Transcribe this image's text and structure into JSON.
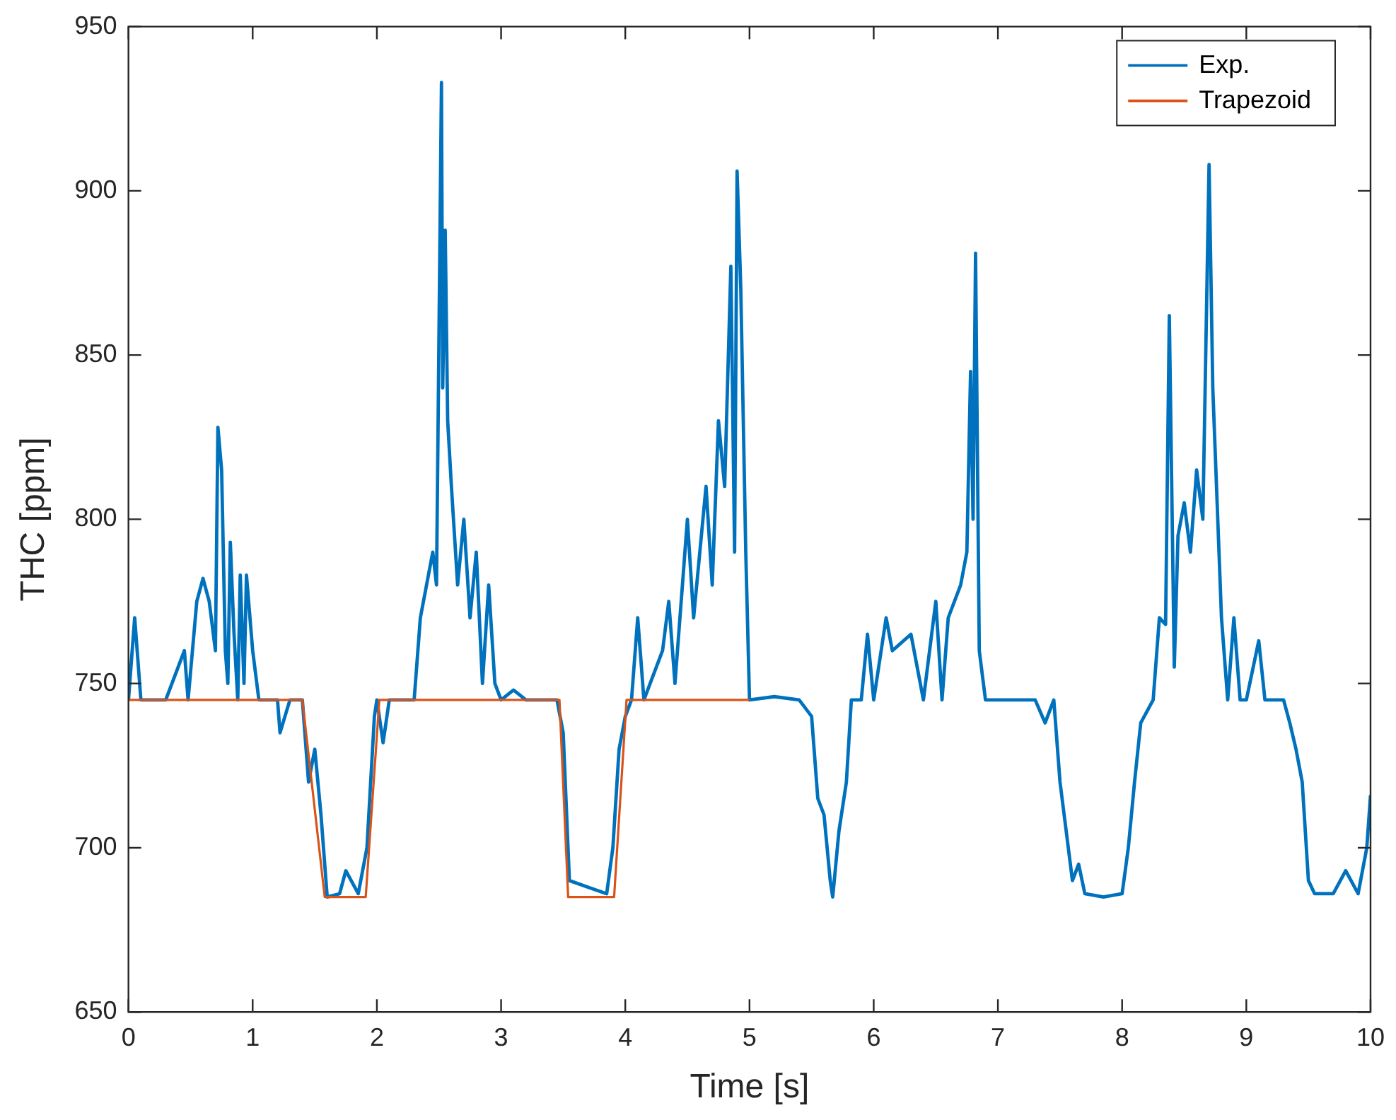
{
  "chart_data": {
    "type": "line",
    "xlabel": "Time [s]",
    "ylabel": "THC [ppm]",
    "xlim": [
      0,
      10
    ],
    "ylim": [
      650,
      950
    ],
    "xticks": [
      0,
      1,
      2,
      3,
      4,
      5,
      6,
      7,
      8,
      9,
      10
    ],
    "yticks": [
      650,
      700,
      750,
      800,
      850,
      900,
      950
    ],
    "grid": false,
    "legend": "top right",
    "marker": "none",
    "line_style": "solid",
    "series": [
      {
        "name": "Exp.",
        "color": "#0072bd",
        "x": [
          0,
          0.05,
          0.1,
          0.15,
          0.3,
          0.45,
          0.48,
          0.55,
          0.6,
          0.65,
          0.7,
          0.72,
          0.75,
          0.78,
          0.8,
          0.82,
          0.85,
          0.88,
          0.9,
          0.93,
          0.95,
          1.0,
          1.05,
          1.2,
          1.22,
          1.3,
          1.4,
          1.45,
          1.5,
          1.55,
          1.6,
          1.7,
          1.75,
          1.85,
          1.92,
          1.98,
          2.0,
          2.05,
          2.1,
          2.3,
          2.35,
          2.4,
          2.45,
          2.48,
          2.52,
          2.53,
          2.55,
          2.57,
          2.6,
          2.65,
          2.7,
          2.75,
          2.8,
          2.85,
          2.9,
          2.95,
          3.0,
          3.1,
          3.2,
          3.35,
          3.45,
          3.5,
          3.55,
          3.7,
          3.85,
          3.9,
          3.95,
          4.0,
          4.05,
          4.1,
          4.15,
          4.3,
          4.35,
          4.4,
          4.5,
          4.55,
          4.6,
          4.65,
          4.7,
          4.75,
          4.8,
          4.85,
          4.88,
          4.9,
          4.93,
          4.97,
          5.0,
          5.2,
          5.4,
          5.5,
          5.55,
          5.6,
          5.65,
          5.67,
          5.72,
          5.78,
          5.82,
          5.9,
          5.95,
          6.0,
          6.1,
          6.15,
          6.3,
          6.4,
          6.5,
          6.55,
          6.6,
          6.7,
          6.75,
          6.78,
          6.8,
          6.82,
          6.85,
          6.9,
          7.0,
          7.3,
          7.38,
          7.45,
          7.5,
          7.55,
          7.6,
          7.65,
          7.7,
          7.85,
          8.0,
          8.05,
          8.1,
          8.15,
          8.25,
          8.3,
          8.35,
          8.38,
          8.42,
          8.45,
          8.5,
          8.55,
          8.6,
          8.65,
          8.7,
          8.73,
          8.8,
          8.85,
          8.9,
          8.95,
          9.0,
          9.1,
          9.15,
          9.3,
          9.35,
          9.4,
          9.45,
          9.5,
          9.55,
          9.7,
          9.8,
          9.9,
          9.97,
          10
        ],
        "values": [
          745,
          770,
          745,
          745,
          745,
          760,
          745,
          775,
          782,
          775,
          760,
          828,
          815,
          760,
          750,
          793,
          765,
          745,
          783,
          750,
          783,
          760,
          745,
          745,
          735,
          745,
          745,
          720,
          730,
          710,
          685,
          686,
          693,
          686,
          700,
          740,
          745,
          732,
          745,
          745,
          770,
          780,
          790,
          780,
          933,
          840,
          888,
          830,
          810,
          780,
          800,
          770,
          790,
          750,
          780,
          750,
          745,
          748,
          745,
          745,
          745,
          735,
          690,
          688,
          686,
          700,
          730,
          740,
          745,
          770,
          745,
          760,
          775,
          750,
          800,
          770,
          790,
          810,
          780,
          830,
          810,
          877,
          790,
          906,
          870,
          790,
          745,
          746,
          745,
          740,
          715,
          710,
          690,
          685,
          705,
          720,
          745,
          745,
          765,
          745,
          770,
          760,
          765,
          745,
          775,
          745,
          770,
          780,
          790,
          845,
          800,
          881,
          760,
          745,
          745,
          745,
          738,
          745,
          720,
          705,
          690,
          695,
          686,
          685,
          686,
          700,
          720,
          738,
          745,
          770,
          768,
          862,
          755,
          795,
          805,
          790,
          815,
          800,
          908,
          840,
          770,
          745,
          770,
          745,
          745,
          763,
          745,
          745,
          738,
          730,
          720,
          690,
          686,
          686,
          693,
          686,
          700,
          716
        ]
      },
      {
        "name": "Trapezoid",
        "color": "#d95319",
        "x": [
          0,
          1.4,
          1.58,
          1.91,
          2.02,
          3.47,
          3.54,
          3.91,
          4.01,
          5
        ],
        "values": [
          745,
          745,
          685,
          685,
          745,
          745,
          685,
          685,
          745,
          745
        ]
      }
    ]
  }
}
